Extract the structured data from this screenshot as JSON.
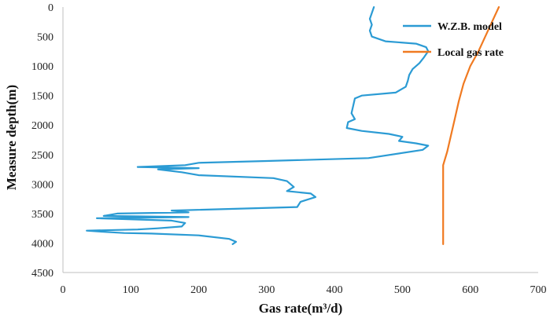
{
  "chart_data": {
    "type": "line",
    "xlabel": "Gas rate(m³/d)",
    "ylabel": "Measure depth(m)",
    "xlim": [
      0,
      700
    ],
    "ylim": [
      0,
      4500
    ],
    "y_inverted": true,
    "x_axis_position": "bottom",
    "x_ticks": [
      0,
      100,
      200,
      300,
      400,
      500,
      600,
      700
    ],
    "y_ticks": [
      0,
      500,
      1000,
      1500,
      2000,
      2500,
      3000,
      3500,
      4000,
      4500
    ],
    "grid": false,
    "legend_position": "top-right",
    "colors": {
      "wzb": "#2b9bd4",
      "local": "#f07a21"
    },
    "series": [
      {
        "name": "W.Z.B. model",
        "points": [
          [
            458,
            0
          ],
          [
            455,
            100
          ],
          [
            452,
            200
          ],
          [
            455,
            300
          ],
          [
            452,
            400
          ],
          [
            455,
            500
          ],
          [
            475,
            580
          ],
          [
            520,
            620
          ],
          [
            535,
            680
          ],
          [
            538,
            750
          ],
          [
            532,
            850
          ],
          [
            525,
            950
          ],
          [
            515,
            1050
          ],
          [
            510,
            1150
          ],
          [
            508,
            1250
          ],
          [
            505,
            1350
          ],
          [
            490,
            1450
          ],
          [
            440,
            1500
          ],
          [
            430,
            1550
          ],
          [
            428,
            1650
          ],
          [
            425,
            1800
          ],
          [
            430,
            1900
          ],
          [
            420,
            1950
          ],
          [
            418,
            2050
          ],
          [
            440,
            2100
          ],
          [
            480,
            2150
          ],
          [
            500,
            2200
          ],
          [
            495,
            2270
          ],
          [
            520,
            2310
          ],
          [
            538,
            2350
          ],
          [
            530,
            2420
          ],
          [
            450,
            2560
          ],
          [
            300,
            2610
          ],
          [
            200,
            2640
          ],
          [
            180,
            2680
          ],
          [
            110,
            2710
          ],
          [
            200,
            2730
          ],
          [
            140,
            2750
          ],
          [
            175,
            2800
          ],
          [
            200,
            2850
          ],
          [
            310,
            2900
          ],
          [
            330,
            2950
          ],
          [
            340,
            3050
          ],
          [
            330,
            3120
          ],
          [
            365,
            3160
          ],
          [
            372,
            3220
          ],
          [
            350,
            3300
          ],
          [
            345,
            3390
          ],
          [
            160,
            3450
          ],
          [
            185,
            3480
          ],
          [
            80,
            3500
          ],
          [
            60,
            3540
          ],
          [
            185,
            3560
          ],
          [
            50,
            3580
          ],
          [
            160,
            3620
          ],
          [
            180,
            3660
          ],
          [
            175,
            3720
          ],
          [
            140,
            3750
          ],
          [
            110,
            3770
          ],
          [
            35,
            3790
          ],
          [
            60,
            3810
          ],
          [
            90,
            3830
          ],
          [
            130,
            3840
          ],
          [
            200,
            3870
          ],
          [
            245,
            3930
          ],
          [
            255,
            3980
          ],
          [
            250,
            4020
          ]
        ]
      },
      {
        "name": "Local gas rate",
        "points": [
          [
            642,
            0
          ],
          [
            632,
            250
          ],
          [
            622,
            500
          ],
          [
            612,
            750
          ],
          [
            600,
            1000
          ],
          [
            590,
            1300
          ],
          [
            583,
            1600
          ],
          [
            577,
            1900
          ],
          [
            571,
            2200
          ],
          [
            566,
            2450
          ],
          [
            560,
            2680
          ],
          [
            560,
            3000
          ],
          [
            560,
            3500
          ],
          [
            560,
            4020
          ]
        ]
      }
    ]
  }
}
